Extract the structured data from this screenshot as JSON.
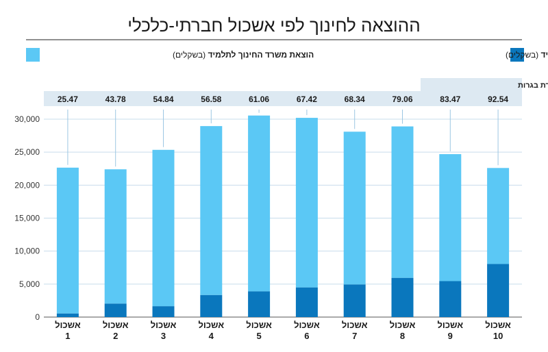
{
  "chart_data": {
    "type": "bar",
    "stacked": true,
    "title": "ההוצאה לחינוך לפי אשכול חברתי-כלכלי",
    "category_prefix": "אשכול",
    "categories": [
      "1",
      "2",
      "3",
      "4",
      "5",
      "6",
      "7",
      "8",
      "9",
      "10"
    ],
    "series": [
      {
        "name": "הוצאת הרשות המקומית לתלמיד",
        "name_suffix": "(בשקלים)",
        "color": "#0a77bd",
        "values": [
          550,
          2050,
          1650,
          3350,
          3900,
          4500,
          4950,
          5950,
          5450,
          8050
        ]
      },
      {
        "name": "הוצאת משרד החינוך לתלמיד",
        "name_suffix": "(בשקלים)",
        "color": "#5bc8f5",
        "values": [
          22100,
          20350,
          23700,
          25600,
          26650,
          25700,
          23150,
          22950,
          19250,
          14550
        ]
      }
    ],
    "ylim": [
      0,
      30000
    ],
    "yticks": [
      "0",
      "5,000",
      "10,000",
      "15,000",
      "20,000",
      "25,000",
      "30,000"
    ],
    "grid": true,
    "legend_position": "top",
    "annotation_row": {
      "label": "אחוז זכאות לתעודת בגרות",
      "values": [
        "25.47",
        "43.78",
        "54.84",
        "56.58",
        "61.06",
        "67.42",
        "68.34",
        "79.06",
        "83.47",
        "92.54"
      ]
    }
  }
}
